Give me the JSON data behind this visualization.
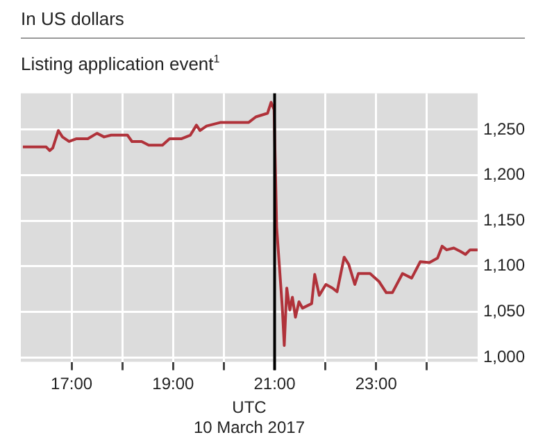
{
  "chart_data": {
    "type": "line",
    "subtitle": "In US dollars",
    "title": "Listing application event$^{1}$",
    "xlabel": "UTC\n10 March 2017",
    "x": [
      16.04,
      16.5,
      16.57,
      16.63,
      16.74,
      16.82,
      16.95,
      17.09,
      17.32,
      17.5,
      17.64,
      17.78,
      18.1,
      18.19,
      18.38,
      18.52,
      18.79,
      18.93,
      19.16,
      19.34,
      19.46,
      19.53,
      19.66,
      19.94,
      20.49,
      20.63,
      20.86,
      20.93,
      20.99,
      21.04,
      21.15,
      21.19,
      21.24,
      21.3,
      21.35,
      21.41,
      21.48,
      21.55,
      21.73,
      21.79,
      21.88,
      22.01,
      22.14,
      22.23,
      22.37,
      22.46,
      22.58,
      22.65,
      22.88,
      23.06,
      23.2,
      23.32,
      23.52,
      23.7,
      23.87,
      24.05,
      24.21,
      24.3,
      24.39,
      24.53,
      24.67,
      24.76,
      24.85,
      25.0
    ],
    "series": [
      {
        "color": "#b0323a",
        "values": [
          1231,
          1231,
          1227,
          1230,
          1249,
          1242,
          1237,
          1240,
          1240,
          1246,
          1242,
          1244,
          1244,
          1237,
          1237,
          1233,
          1233,
          1240,
          1240,
          1244,
          1255,
          1249,
          1254,
          1258,
          1258,
          1264,
          1268,
          1280,
          1272,
          1143,
          1056,
          1013,
          1076,
          1052,
          1066,
          1044,
          1061,
          1054,
          1059,
          1091,
          1068,
          1080,
          1076,
          1072,
          1110,
          1102,
          1080,
          1092,
          1092,
          1083,
          1071,
          1071,
          1092,
          1087,
          1105,
          1104,
          1109,
          1122,
          1118,
          1120,
          1116,
          1113,
          1118,
          1118
        ]
      }
    ],
    "xlim": [
      16,
      25
    ],
    "xticks": [
      {
        "value": 17,
        "label": "17:00"
      },
      {
        "value": 18,
        "label": null
      },
      {
        "value": 19,
        "label": "19:00"
      },
      {
        "value": 20,
        "label": null
      },
      {
        "value": 21,
        "label": "21:00"
      },
      {
        "value": 22,
        "label": null
      },
      {
        "value": 23,
        "label": "23:00"
      },
      {
        "value": 24,
        "label": null
      }
    ],
    "ylim": [
      995,
      1290
    ],
    "yticks": [
      {
        "value": 1000,
        "label": "1,000"
      },
      {
        "value": 1050,
        "label": "1,050"
      },
      {
        "value": 1100,
        "label": "1,100"
      },
      {
        "value": 1150,
        "label": "1,150"
      },
      {
        "value": 1200,
        "label": "1,200"
      },
      {
        "value": 1250,
        "label": "1,250"
      }
    ],
    "ref_lines": [
      {
        "axis": "x",
        "value": 21,
        "color": "#000000"
      }
    ],
    "grid": true,
    "legend": false,
    "marker": "none",
    "line_style": "solid"
  }
}
